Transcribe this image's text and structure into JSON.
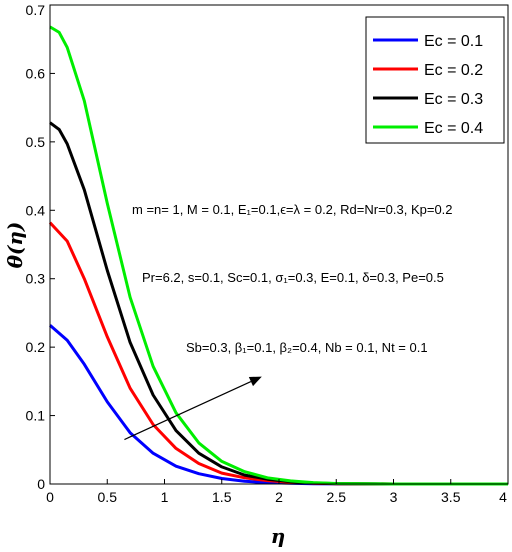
{
  "chart_data": {
    "type": "line",
    "xlabel": "η",
    "ylabel": "θ(η)",
    "xlim": [
      0,
      4
    ],
    "ylim": [
      0,
      0.7
    ],
    "x_ticks": [
      "0",
      "0.5",
      "1",
      "1.5",
      "2",
      "2.5",
      "3",
      "3.5",
      "4"
    ],
    "y_ticks": [
      "0",
      "0.1",
      "0.2",
      "0.3",
      "0.4",
      "0.5",
      "0.6",
      "0.7"
    ],
    "legend_position": "top-right",
    "grid": false,
    "series": [
      {
        "name": "Ec = 0.1",
        "color": "#0000ff",
        "x": [
          0,
          0.15,
          0.3,
          0.5,
          0.7,
          0.9,
          1.1,
          1.3,
          1.5,
          1.7,
          1.9,
          2.1,
          2.3,
          2.5,
          3.0,
          3.5,
          4.0
        ],
        "y": [
          0.232,
          0.21,
          0.175,
          0.12,
          0.075,
          0.045,
          0.026,
          0.015,
          0.008,
          0.004,
          0.002,
          0.001,
          0.0005,
          0.0002,
          0,
          0,
          0
        ]
      },
      {
        "name": "Ec = 0.2",
        "color": "#ff0000",
        "x": [
          0,
          0.15,
          0.3,
          0.5,
          0.7,
          0.9,
          1.1,
          1.3,
          1.5,
          1.7,
          1.9,
          2.1,
          2.3,
          2.5,
          3.0,
          3.5,
          4.0
        ],
        "y": [
          0.382,
          0.355,
          0.3,
          0.215,
          0.14,
          0.087,
          0.052,
          0.03,
          0.016,
          0.009,
          0.005,
          0.0025,
          0.0012,
          0.0005,
          0,
          0,
          0
        ]
      },
      {
        "name": "Ec = 0.3",
        "color": "#000000",
        "x": [
          0,
          0.08,
          0.15,
          0.3,
          0.5,
          0.7,
          0.9,
          1.1,
          1.3,
          1.5,
          1.7,
          1.9,
          2.1,
          2.3,
          2.5,
          3.0,
          3.5,
          4.0
        ],
        "y": [
          0.528,
          0.518,
          0.497,
          0.43,
          0.312,
          0.207,
          0.13,
          0.078,
          0.045,
          0.025,
          0.013,
          0.007,
          0.0035,
          0.0015,
          0.0006,
          0,
          0,
          0
        ]
      },
      {
        "name": "Ec = 0.4",
        "color": "#00ee00",
        "x": [
          0,
          0.08,
          0.15,
          0.3,
          0.5,
          0.7,
          0.9,
          1.1,
          1.3,
          1.5,
          1.7,
          1.9,
          2.1,
          2.3,
          2.5,
          3.0,
          3.5,
          4.0
        ],
        "y": [
          0.668,
          0.66,
          0.638,
          0.56,
          0.41,
          0.273,
          0.172,
          0.104,
          0.06,
          0.033,
          0.018,
          0.009,
          0.0045,
          0.002,
          0.0008,
          0,
          0,
          0
        ]
      }
    ],
    "annotations": {
      "line1": "m =n= 1, M = 0.1, E₁=0.1,ϵ=λ = 0.2, Rd=Nr=0.3, Kp=0.2",
      "line2": "Pr=6.2, s=0.1, Sc=0.1, σ₁=0.3, E=0.1, δ=0.3, Pe=0.5",
      "line3": "Sb=0.3, β₁=0.1, β₂=0.4, Nb = 0.1, Nt = 0.1"
    },
    "arrow": {
      "from": [
        0.65,
        0.065
      ],
      "to": [
        1.85,
        0.157
      ]
    }
  }
}
